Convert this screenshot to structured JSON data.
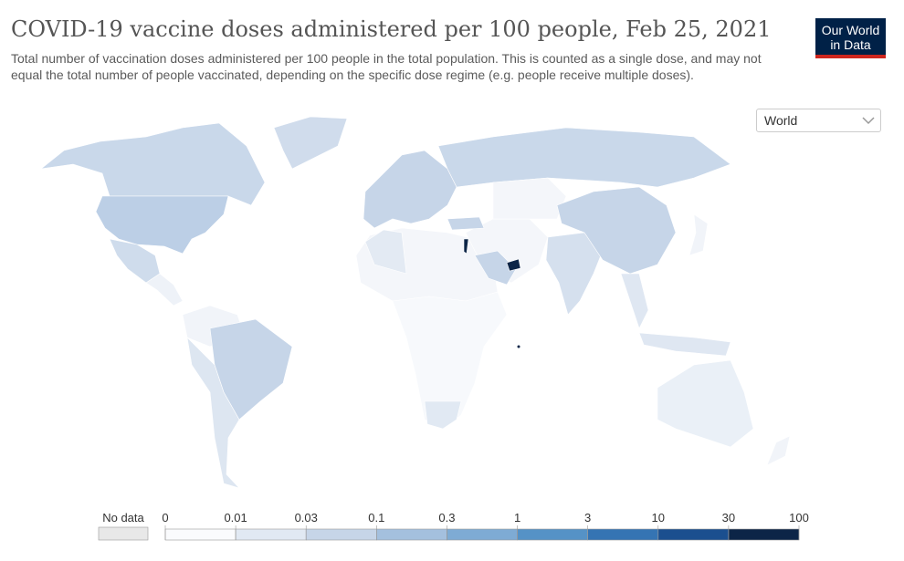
{
  "header": {
    "title": "COVID-19 vaccine doses administered per 100 people, Feb 25, 2021",
    "subtitle": "Total number of vaccination doses administered per 100 people in the total population. This is counted as a single dose, and may not equal the total number of people vaccinated, depending on the specific dose regime (e.g. people receive multiple doses)."
  },
  "logo": {
    "lines": [
      "Our World",
      "in Data"
    ]
  },
  "selector": {
    "value": "World"
  },
  "legend": {
    "no_data_label": "No data",
    "no_data_color": "#e8e8e8",
    "ticks": [
      0,
      0.01,
      0.03,
      0.1,
      0.3,
      1,
      3,
      10,
      30,
      100
    ],
    "colors": [
      "#fafbfd",
      "#e1e9f3",
      "#c6d5e8",
      "#a4c0de",
      "#7eabd4",
      "#5592c6",
      "#3574b3",
      "#1b4f8f",
      "#0c2547"
    ]
  }
}
